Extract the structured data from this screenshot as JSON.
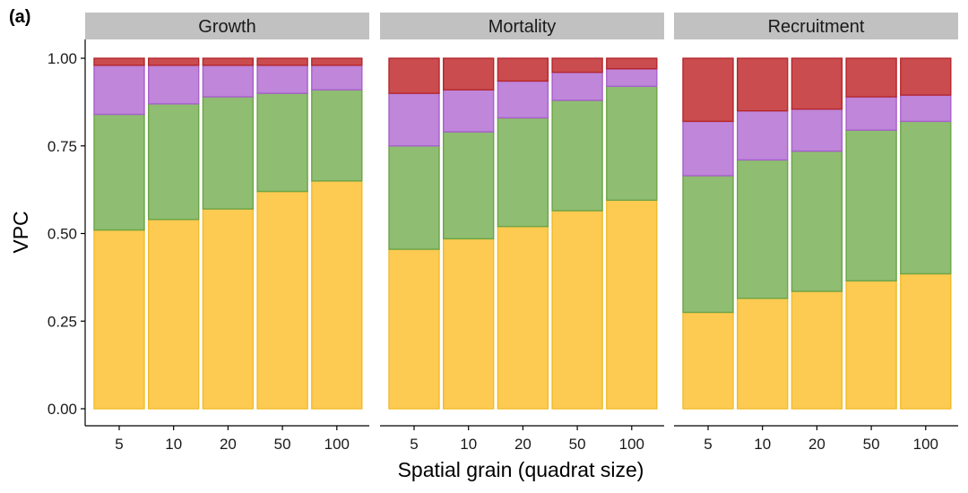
{
  "panel_tag": "(a)",
  "chart_data": {
    "type": "bar",
    "stacked": true,
    "xlabel": "Spatial grain (quadrat size)",
    "ylabel": "VPC",
    "ylim": [
      0,
      1
    ],
    "yticks": [
      "0.00",
      "0.25",
      "0.50",
      "0.75",
      "1.00"
    ],
    "categories": [
      "5",
      "10",
      "20",
      "50",
      "100"
    ],
    "legend": "none",
    "grid": false,
    "segment_colors": [
      {
        "fill": "#FDCA52",
        "stroke": "#F2BB2A"
      },
      {
        "fill": "#8FBD72",
        "stroke": "#6CA547"
      },
      {
        "fill": "#BF86DA",
        "stroke": "#A860CC"
      },
      {
        "fill": "#CA4C4F",
        "stroke": "#B5262B"
      }
    ],
    "panels": [
      {
        "title": "Growth",
        "stacks": [
          [
            0.51,
            0.33,
            0.14,
            0.02
          ],
          [
            0.54,
            0.33,
            0.11,
            0.02
          ],
          [
            0.57,
            0.32,
            0.09,
            0.02
          ],
          [
            0.62,
            0.28,
            0.08,
            0.02
          ],
          [
            0.65,
            0.26,
            0.07,
            0.02
          ]
        ]
      },
      {
        "title": "Mortality",
        "stacks": [
          [
            0.455,
            0.295,
            0.15,
            0.1
          ],
          [
            0.485,
            0.305,
            0.12,
            0.09
          ],
          [
            0.52,
            0.31,
            0.105,
            0.065
          ],
          [
            0.565,
            0.315,
            0.08,
            0.04
          ],
          [
            0.595,
            0.325,
            0.05,
            0.03
          ]
        ]
      },
      {
        "title": "Recruitment",
        "stacks": [
          [
            0.275,
            0.39,
            0.155,
            0.18
          ],
          [
            0.315,
            0.395,
            0.14,
            0.15
          ],
          [
            0.335,
            0.4,
            0.12,
            0.145
          ],
          [
            0.365,
            0.43,
            0.095,
            0.11
          ],
          [
            0.385,
            0.435,
            0.075,
            0.105
          ]
        ]
      }
    ]
  }
}
